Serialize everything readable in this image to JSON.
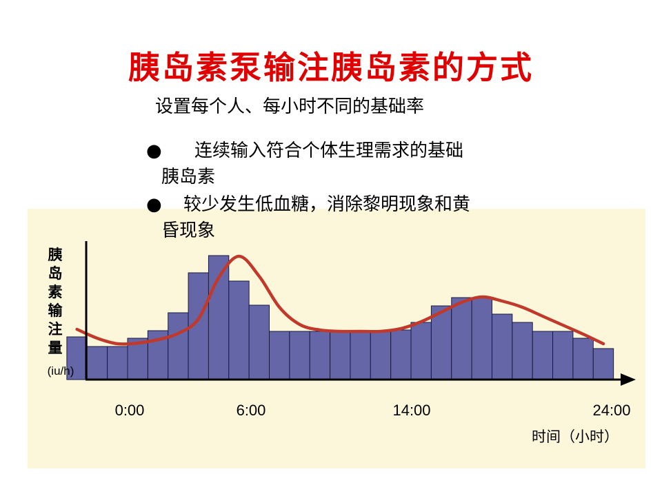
{
  "title": "胰岛素泵输注胰岛素的方式",
  "subtitle": "设置每个人、每小时不同的基础率",
  "bullets": [
    {
      "marker": "●",
      "line1": "连续输入符合个体生理需求的基础",
      "line2": "胰岛素"
    },
    {
      "marker": "●",
      "line1": "较少发生低血糖，消除黎明现象和黄",
      "line2": "昏现象"
    }
  ],
  "colors": {
    "title": "#e00000",
    "panel": "#fcf7da",
    "bar_fill": "#6466a8",
    "bar_stroke": "#1a1a40",
    "curve": "#c0392b"
  },
  "chart_data": {
    "type": "bar",
    "title": "",
    "ylabel_chars": [
      "胰",
      "岛",
      "素",
      "输",
      "注",
      "量"
    ],
    "yunit": "(iu/h)",
    "xlabel": "时间（小时）",
    "xticks": [
      {
        "label": "0:00",
        "hour": 0
      },
      {
        "label": "6:00",
        "hour": 6
      },
      {
        "label": "14:00",
        "hour": 14
      },
      {
        "label": "24:00",
        "hour": 24
      }
    ],
    "hour_start": -2,
    "hour_end": 24,
    "ylim": [
      0,
      185
    ],
    "bars": [
      {
        "start": -2,
        "value": 62
      },
      {
        "start": -1,
        "value": 48
      },
      {
        "start": 0,
        "value": 48
      },
      {
        "start": 1,
        "value": 60
      },
      {
        "start": 2,
        "value": 71
      },
      {
        "start": 3,
        "value": 97
      },
      {
        "start": 4,
        "value": 155
      },
      {
        "start": 5,
        "value": 180
      },
      {
        "start": 6,
        "value": 143
      },
      {
        "start": 7,
        "value": 108
      },
      {
        "start": 8,
        "value": 70
      },
      {
        "start": 9,
        "value": 70
      },
      {
        "start": 10,
        "value": 70
      },
      {
        "start": 11,
        "value": 70
      },
      {
        "start": 12,
        "value": 70
      },
      {
        "start": 13,
        "value": 70
      },
      {
        "start": 14,
        "value": 72
      },
      {
        "start": 15,
        "value": 83
      },
      {
        "start": 16,
        "value": 107
      },
      {
        "start": 17,
        "value": 119
      },
      {
        "start": 18,
        "value": 119
      },
      {
        "start": 19,
        "value": 95
      },
      {
        "start": 20,
        "value": 83
      },
      {
        "start": 21,
        "value": 70
      },
      {
        "start": 22,
        "value": 70
      },
      {
        "start": 23,
        "value": 60
      },
      {
        "start": 24,
        "value": 45
      }
    ],
    "curve": [
      {
        "hour": -2,
        "value": 73
      },
      {
        "hour": -1,
        "value": 60
      },
      {
        "hour": 0,
        "value": 52
      },
      {
        "hour": 1,
        "value": 53
      },
      {
        "hour": 2,
        "value": 58
      },
      {
        "hour": 3,
        "value": 67
      },
      {
        "hour": 4,
        "value": 88
      },
      {
        "hour": 5,
        "value": 148
      },
      {
        "hour": 6,
        "value": 179
      },
      {
        "hour": 7,
        "value": 150
      },
      {
        "hour": 8,
        "value": 105
      },
      {
        "hour": 9,
        "value": 80
      },
      {
        "hour": 10,
        "value": 72
      },
      {
        "hour": 11,
        "value": 70
      },
      {
        "hour": 12,
        "value": 70
      },
      {
        "hour": 13,
        "value": 70
      },
      {
        "hour": 14,
        "value": 74
      },
      {
        "hour": 15,
        "value": 84
      },
      {
        "hour": 16,
        "value": 98
      },
      {
        "hour": 17,
        "value": 112
      },
      {
        "hour": 18,
        "value": 120
      },
      {
        "hour": 19,
        "value": 114
      },
      {
        "hour": 20,
        "value": 105
      },
      {
        "hour": 21,
        "value": 92
      },
      {
        "hour": 22,
        "value": 79
      },
      {
        "hour": 23,
        "value": 66
      },
      {
        "hour": 24,
        "value": 52
      }
    ]
  }
}
